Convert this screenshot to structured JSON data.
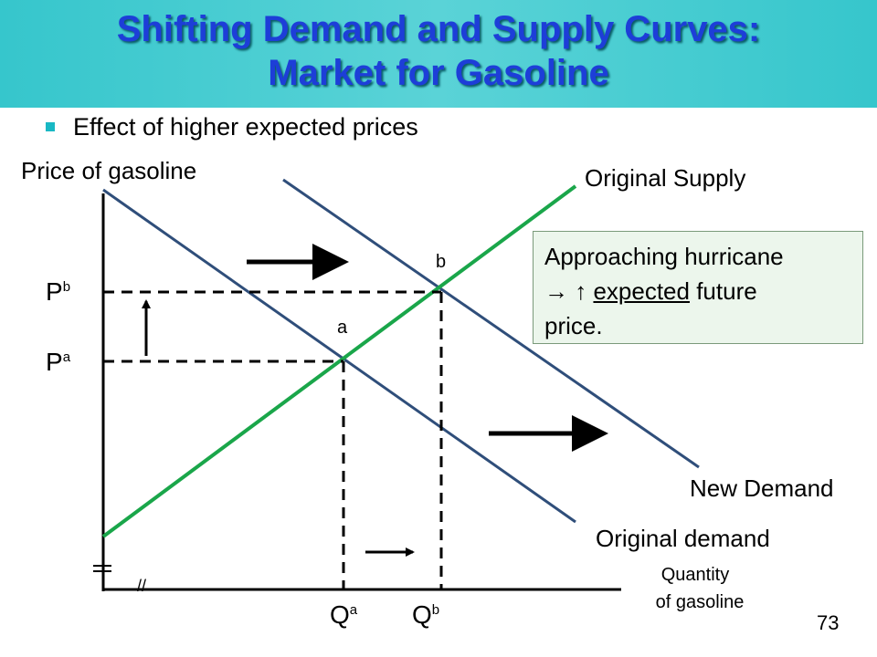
{
  "slide": {
    "title_line1": "Shifting Demand and Supply Curves:",
    "title_line2": "Market for Gasoline",
    "bullet": "Effect of higher expected prices",
    "page_number": "73"
  },
  "diagram": {
    "y_axis_label": "Price of gasoline",
    "x_axis_label_line1": "Quantity",
    "x_axis_label_line2": "of gasoline",
    "original_supply_label": "Original Supply",
    "new_demand_label": "New Demand",
    "original_demand_label": "Original demand",
    "point_a_label": "a",
    "point_b_label": "b",
    "price_b": {
      "base": "P",
      "sub": "b"
    },
    "price_a": {
      "base": "P",
      "sub": "a"
    },
    "qty_a": {
      "base": "Q",
      "sub": "a"
    },
    "qty_b": {
      "base": "Q",
      "sub": "b"
    },
    "break_mark": "//",
    "colors": {
      "supply": "#1aa64a",
      "demand": "#2f4e7a",
      "axis": "#000000",
      "callout_bg": "#ecf6ec"
    }
  },
  "callout": {
    "line1": "Approaching hurricane",
    "line2_prefix": "→ ↑ ",
    "line2_underlined": "expected",
    "line2_suffix": " future",
    "line3": "price."
  }
}
